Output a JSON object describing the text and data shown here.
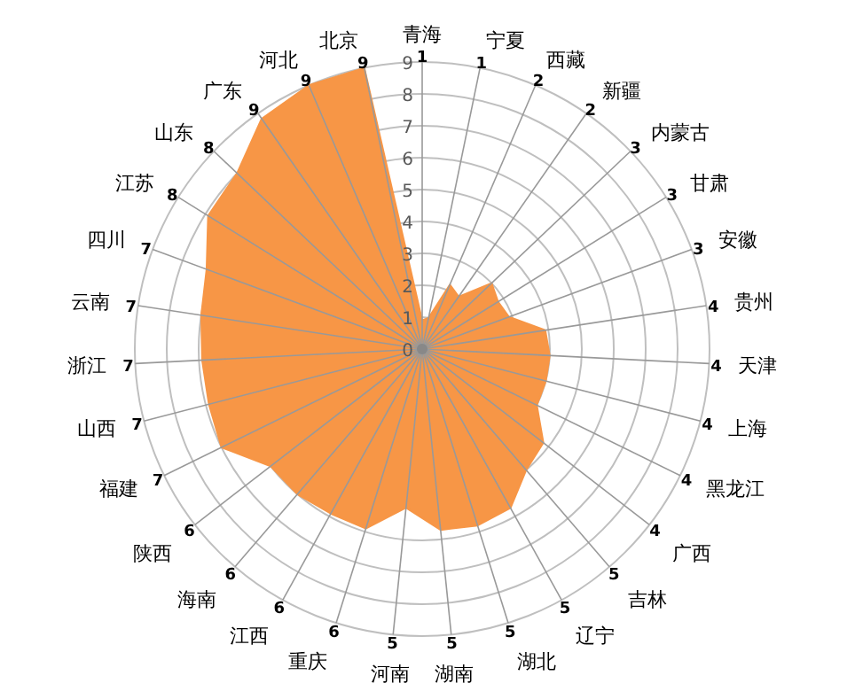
{
  "chart_data": {
    "type": "radar",
    "categories": [
      "青海",
      "宁夏",
      "西藏",
      "新疆",
      "内蒙古",
      "甘肃",
      "安徽",
      "贵州",
      "天津",
      "上海",
      "黑龙江",
      "广西",
      "吉林",
      "辽宁",
      "湖北",
      "湖南",
      "河南",
      "重庆",
      "江西",
      "海南",
      "陕西",
      "福建",
      "山西",
      "浙江",
      "云南",
      "四川",
      "江苏",
      "山东",
      "广东",
      "河北",
      "北京"
    ],
    "ylim": [
      0,
      9
    ],
    "yticks": [
      0,
      1,
      2,
      3,
      4,
      5,
      6,
      7,
      8,
      9
    ],
    "grid": true,
    "annotations": [
      "1",
      "1",
      "2",
      "2",
      "3",
      "3",
      "3",
      "4",
      "4",
      "4",
      "4",
      "4",
      "5",
      "5",
      "5",
      "5",
      "5",
      "6",
      "6",
      "6",
      "6",
      "7",
      "7",
      "7",
      "7",
      "7",
      "8",
      "8",
      "9",
      "9",
      "9"
    ],
    "series": [
      {
        "color": "#f79646",
        "values": [
          0.9,
          1.0,
          2.2,
          2.0,
          3.0,
          2.8,
          2.9,
          3.9,
          4.0,
          4.0,
          4.0,
          4.8,
          5.0,
          5.7,
          5.8,
          5.7,
          5.0,
          5.9,
          5.9,
          6.0,
          6.0,
          7.0,
          6.9,
          6.9,
          7.0,
          7.2,
          7.9,
          8.0,
          8.8,
          9.0,
          9.0
        ]
      }
    ]
  }
}
